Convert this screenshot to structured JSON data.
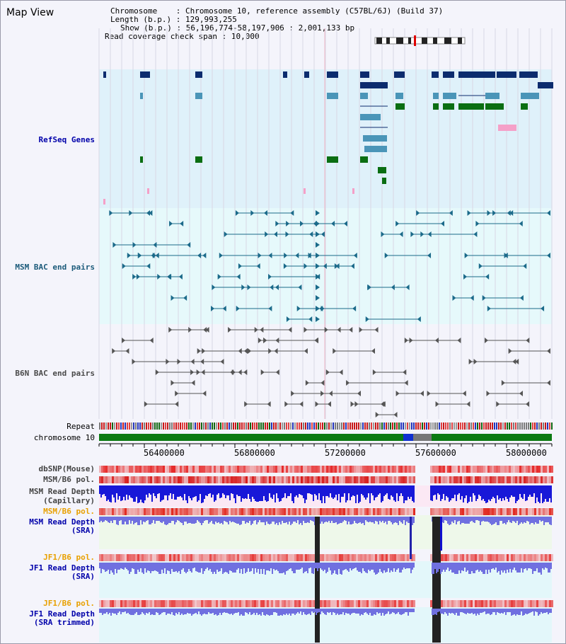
{
  "map_view": {
    "title": "Map View",
    "info": {
      "chromosome_label": "Chromosome",
      "chromosome_value": "Chromosome 10, reference assembly (C57BL/6J) (Build 37)",
      "length_label": "Length (b.p.)",
      "length_value": "129,993,255",
      "show_label": "Show (b.p.)",
      "show_value": "56,196,774-58,197,906 : 2,001,133 bp",
      "coverage_label": "Read coverage check span",
      "coverage_value": "10,000"
    }
  },
  "tracks": {
    "refseq": {
      "label": "RefSeq Genes",
      "color": "#0000aa"
    },
    "msm_bac": {
      "label": "MSM BAC end pairs",
      "color": "#1b5a7a"
    },
    "b6n_bac": {
      "label": "B6N BAC end pairs",
      "color": "#4a4a4a"
    },
    "repeat": {
      "label": "Repeat"
    },
    "chrom": {
      "label": "chromosome 10"
    },
    "dbsnp": {
      "label": "dbSNP(Mouse)",
      "color": "#444444"
    },
    "msm_pol1": {
      "label": "MSM/B6 pol.",
      "color": "#444444"
    },
    "msm_depth_cap": {
      "label": "MSM Read Depth",
      "label2": "(Capillary)",
      "color": "#444444"
    },
    "msm_pol2": {
      "label": "MSM/B6 pol.",
      "color": "#e8a000"
    },
    "msm_depth_sra": {
      "label": "MSM Read Depth",
      "label2": "(SRA)",
      "color": "#0000aa"
    },
    "jf1_pol1": {
      "label": "JF1/B6 pol.",
      "color": "#e8a000"
    },
    "jf1_depth_sra": {
      "label": "JF1 Read Depth",
      "label2": "(SRA)",
      "color": "#0000aa"
    },
    "jf1_pol2": {
      "label": "JF1/B6 pol.",
      "color": "#e8a000"
    },
    "jf1_depth_trim": {
      "label": "JF1 Read Depth",
      "label2": "(SRA trimmed)",
      "color": "#0000aa"
    }
  },
  "axis": {
    "ticks": [
      "56400000",
      "56800000",
      "57200000",
      "57600000",
      "58000000"
    ]
  }
}
